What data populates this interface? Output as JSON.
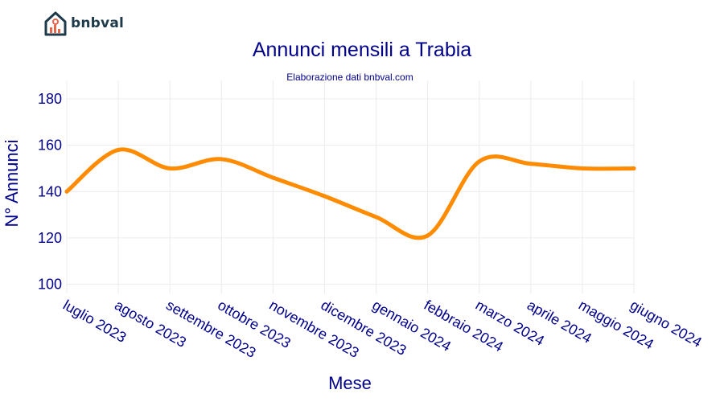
{
  "logo": {
    "text": "bnbval",
    "icon": "house-chart-icon",
    "accent": "#e8654a",
    "dark": "#1f3a4a"
  },
  "chart_data": {
    "type": "line",
    "title": "Annunci mensili a Trabia",
    "subtitle": "Elaborazione dati bnbval.com",
    "xlabel": "Mese",
    "ylabel": "N° Annunci",
    "categories": [
      "luglio 2023",
      "agosto 2023",
      "settembre 2023",
      "ottobre 2023",
      "novembre 2023",
      "dicembre 2023",
      "gennaio 2024",
      "febbraio 2024",
      "marzo 2024",
      "aprile 2024",
      "maggio 2024",
      "giugno 2024"
    ],
    "series": [
      {
        "values": [
          140,
          158,
          150,
          154,
          146,
          138,
          129,
          121,
          153,
          152,
          150,
          150
        ],
        "color": "#ff8c00"
      }
    ],
    "yticks": [
      100,
      120,
      140,
      160,
      180
    ],
    "ylim": [
      96,
      188
    ],
    "grid": true,
    "legend": "none"
  }
}
